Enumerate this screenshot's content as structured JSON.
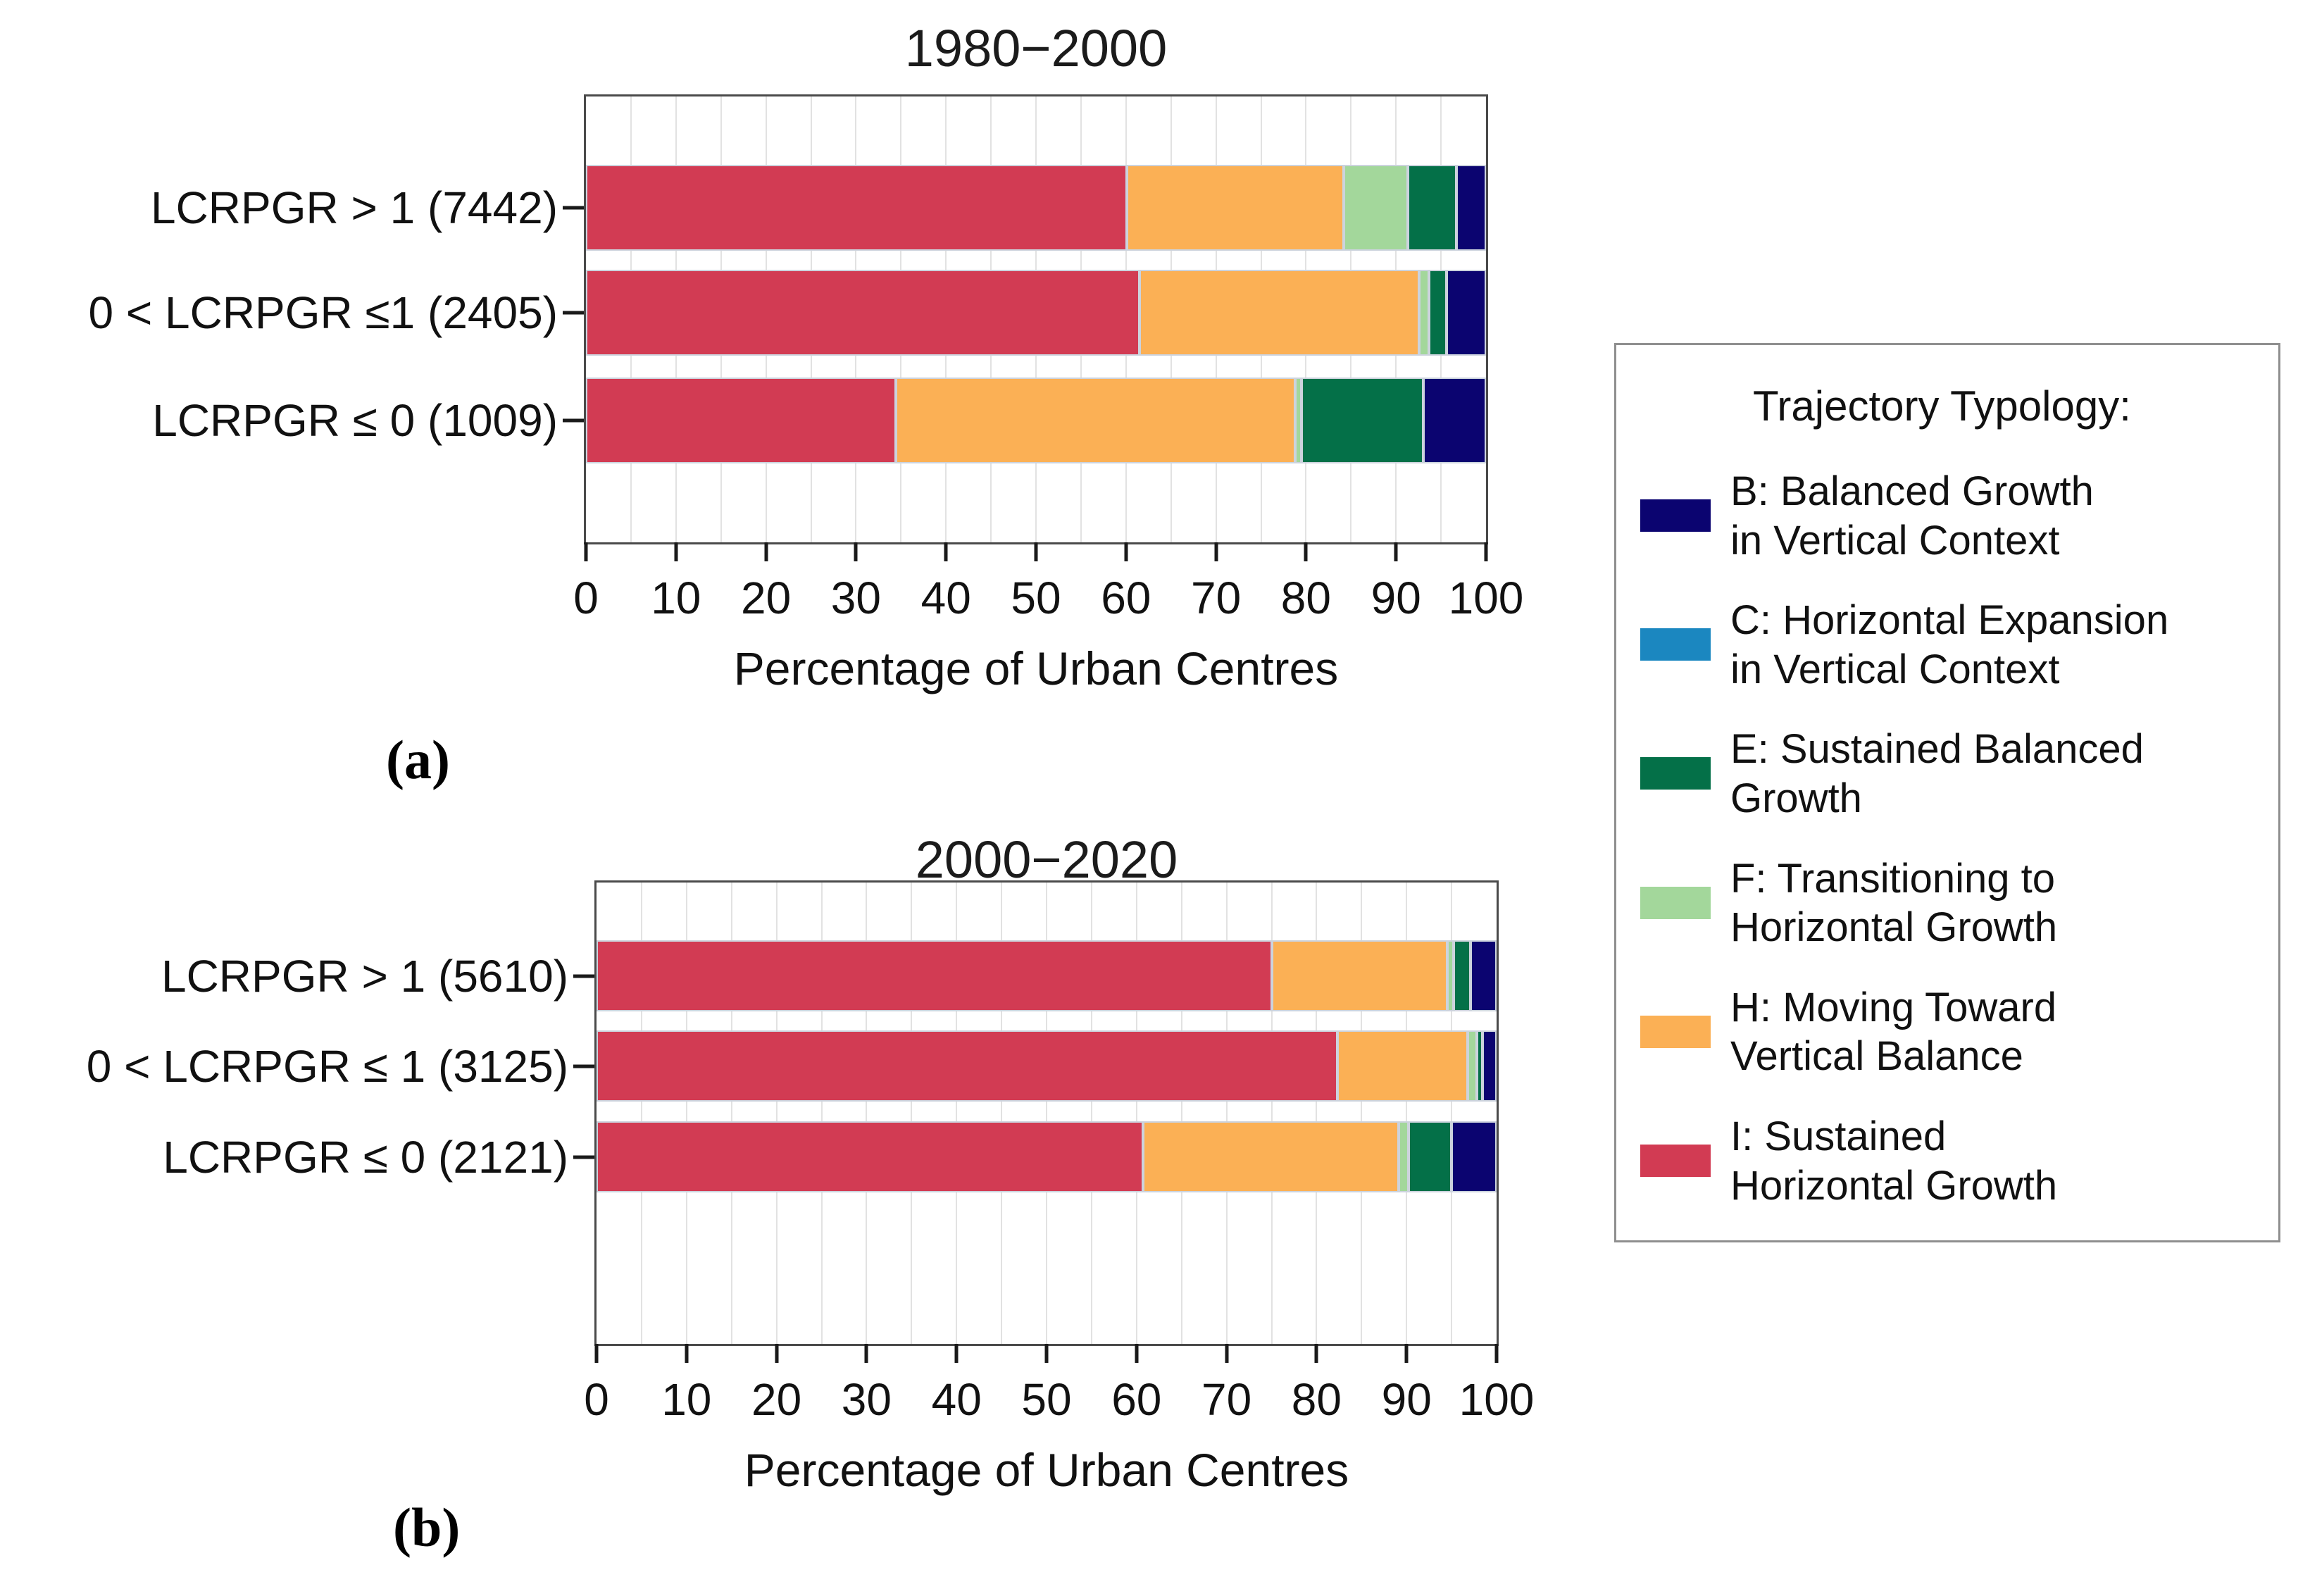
{
  "figure": {
    "panel_a_label": "(a)",
    "panel_b_label": "(b)"
  },
  "colors": {
    "B": "#0b0470",
    "C": "#1b87c0",
    "E": "#047048",
    "F": "#a3d79b",
    "H": "#fbb055",
    "I": "#d23b53",
    "grid": "#e2e2e2",
    "frame": "#4a4a4a",
    "segment_stroke": "#ccd3dd"
  },
  "legend": {
    "title": "Trajectory Typology:",
    "items": [
      {
        "key": "B",
        "label": "B: Balanced Growth\nin Vertical Context"
      },
      {
        "key": "C",
        "label": "C: Horizontal Expansion\nin Vertical Context"
      },
      {
        "key": "E",
        "label": "E: Sustained Balanced\nGrowth"
      },
      {
        "key": "F",
        "label": "F: Transitioning to\nHorizontal Growth"
      },
      {
        "key": "H",
        "label": "H: Moving Toward\nVertical Balance"
      },
      {
        "key": "I",
        "label": "I: Sustained\nHorizontal Growth"
      }
    ]
  },
  "chart_data": [
    {
      "type": "bar",
      "subtype": "horizontal-stacked-percentage",
      "title": "1980−2000",
      "xlabel": "Percentage of Urban Centres",
      "xlim": [
        0,
        100
      ],
      "x_ticks": [
        0,
        10,
        20,
        30,
        40,
        50,
        60,
        70,
        80,
        90,
        100
      ],
      "grid_step": 5,
      "legend_position": "right",
      "categories": [
        "LCRPGR > 1 (7442)",
        "0 < LCRPGR ≤1 (2405)",
        "LCRPGR ≤ 0 (1009)"
      ],
      "stack_order": [
        "I",
        "H",
        "F",
        "E",
        "B"
      ],
      "series": [
        {
          "key": "I",
          "name": "I: Sustained Horizontal Growth",
          "values": [
            60.1,
            61.5,
            34.4
          ]
        },
        {
          "key": "H",
          "name": "H: Moving Toward Vertical Balance",
          "values": [
            24.1,
            31.1,
            44.4
          ]
        },
        {
          "key": "F",
          "name": "F: Transitioning to Horizontal Growth",
          "values": [
            7.1,
            1.1,
            0.7
          ]
        },
        {
          "key": "E",
          "name": "E: Sustained Balanced Growth",
          "values": [
            5.4,
            1.9,
            13.5
          ]
        },
        {
          "key": "B",
          "name": "B: Balanced Growth in Vertical Context",
          "values": [
            3.3,
            4.4,
            7.0
          ]
        },
        {
          "key": "C",
          "name": "C: Horizontal Expansion in Vertical Context",
          "values": [
            0,
            0,
            0
          ]
        }
      ]
    },
    {
      "type": "bar",
      "subtype": "horizontal-stacked-percentage",
      "title": "2000−2020",
      "xlabel": "Percentage of Urban Centres",
      "xlim": [
        0,
        100
      ],
      "x_ticks": [
        0,
        10,
        20,
        30,
        40,
        50,
        60,
        70,
        80,
        90,
        100
      ],
      "grid_step": 5,
      "legend_position": "right",
      "categories": [
        "LCRPGR > 1 (5610)",
        "0 < LCRPGR ≤ 1 (3125)",
        "LCRPGR ≤ 0 (2121)"
      ],
      "stack_order": [
        "I",
        "H",
        "F",
        "E",
        "B"
      ],
      "series": [
        {
          "key": "I",
          "name": "I: Sustained Horizontal Growth",
          "values": [
            75.0,
            82.3,
            60.7
          ]
        },
        {
          "key": "H",
          "name": "H: Moving Toward Vertical Balance",
          "values": [
            19.5,
            14.5,
            28.4
          ]
        },
        {
          "key": "F",
          "name": "F: Transitioning to Horizontal Growth",
          "values": [
            0.7,
            1.0,
            1.1
          ]
        },
        {
          "key": "E",
          "name": "E: Sustained Balanced Growth",
          "values": [
            1.9,
            0.6,
            4.8
          ]
        },
        {
          "key": "B",
          "name": "B: Balanced Growth in Vertical Context",
          "values": [
            2.9,
            1.6,
            5.0
          ]
        },
        {
          "key": "C",
          "name": "C: Horizontal Expansion in Vertical Context",
          "values": [
            0,
            0,
            0
          ]
        }
      ]
    }
  ]
}
